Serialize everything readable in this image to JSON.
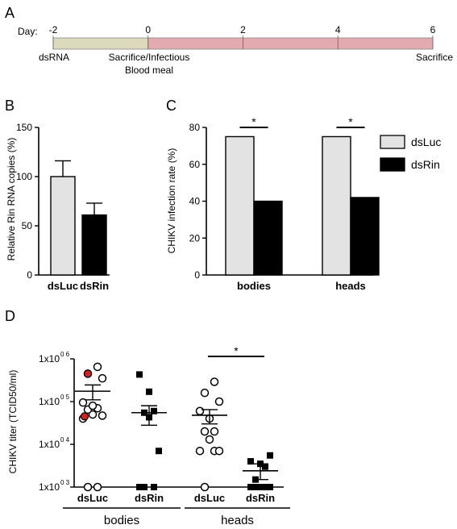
{
  "panels": {
    "A": "A",
    "B": "B",
    "C": "C",
    "D": "D"
  },
  "timeline": {
    "day_label": "Day:",
    "ticks": [
      "-2",
      "0",
      "2",
      "4",
      "6"
    ],
    "tick_values": [
      -2,
      0,
      2,
      4,
      6
    ],
    "segments": [
      {
        "from": -2,
        "to": 0,
        "color": "#dcd9bd"
      },
      {
        "from": 0,
        "to": 6,
        "color": "#e3aab0"
      }
    ],
    "labels": {
      "dsrna": "dsRNA",
      "infection_line1": "Sacrifice/Infectious",
      "infection_line2": "Blood meal",
      "sacrifice": "Sacrifice"
    }
  },
  "chart_data": [
    {
      "panel": "B",
      "type": "bar",
      "categories": [
        "dsLuc",
        "dsRin"
      ],
      "values": [
        100,
        61
      ],
      "errors": [
        16,
        12
      ],
      "colors": [
        "#e3e3e3",
        "#000000"
      ],
      "ylabel": "Relative Rin RNA copies (%)",
      "ylim": [
        0,
        150
      ],
      "yticks": [
        "0",
        "50",
        "100",
        "150"
      ],
      "ytick_values": [
        0,
        50,
        100,
        150
      ]
    },
    {
      "panel": "C",
      "type": "bar",
      "categories": [
        "bodies",
        "heads"
      ],
      "series": [
        {
          "name": "dsLuc",
          "values": [
            75,
            75
          ],
          "color": "#e3e3e3"
        },
        {
          "name": "dsRin",
          "values": [
            40,
            42
          ],
          "color": "#000000"
        }
      ],
      "ylabel": "CHIKV infection rate (%)",
      "ylim": [
        0,
        80
      ],
      "yticks": [
        "0",
        "20",
        "40",
        "60",
        "80"
      ],
      "ytick_values": [
        0,
        20,
        40,
        60,
        80
      ],
      "significance": [
        "*",
        "*"
      ],
      "legend": "top-right"
    },
    {
      "panel": "D",
      "type": "scatter",
      "ylabel": "CHIKV titer (TCID50/ml)",
      "yscale": "log",
      "ylim": [
        1000,
        1000000
      ],
      "yticks": [
        {
          "base": "1x10",
          "exp": "0 3",
          "value": 1000
        },
        {
          "base": "1x10",
          "exp": "0 4",
          "value": 10000
        },
        {
          "base": "1x10",
          "exp": "0 5",
          "value": 100000
        },
        {
          "base": "1x10",
          "exp": "0 6",
          "value": 1000000
        }
      ],
      "groups": [
        {
          "label": "dsLuc",
          "group": "bodies",
          "marker": "open-circle",
          "points": [
            1000,
            1000,
            40000,
            47000,
            50000,
            65000,
            70000,
            80000,
            95000,
            350000,
            450000,
            650000
          ],
          "red_points": [
            45000,
            450000
          ],
          "mean": 175000,
          "sem_low": 110000,
          "sem_high": 245000
        },
        {
          "label": "dsRin",
          "group": "bodies",
          "marker": "filled-square",
          "points": [
            1000,
            1000,
            1000,
            7000,
            43000,
            55000,
            60000,
            170000,
            430000
          ],
          "red_points": [],
          "mean": 55000,
          "sem_low": 28000,
          "sem_high": 80000
        },
        {
          "label": "dsLuc",
          "group": "heads",
          "marker": "open-circle",
          "points": [
            1000,
            7000,
            7000,
            7000,
            13000,
            20000,
            20000,
            40000,
            60000,
            100000,
            160000,
            290000
          ],
          "red_points": [],
          "mean": 48000,
          "sem_low": 30000,
          "sem_high": 65000
        },
        {
          "label": "dsRin",
          "group": "heads",
          "marker": "filled-square",
          "points": [
            1000,
            1000,
            1000,
            1000,
            1000,
            1500,
            3000,
            3500,
            4000,
            5500
          ],
          "red_points": [],
          "mean": 2400,
          "sem_low": 1500,
          "sem_high": 3500
        }
      ],
      "xgroups": [
        "bodies",
        "heads"
      ],
      "significance": "*"
    }
  ]
}
